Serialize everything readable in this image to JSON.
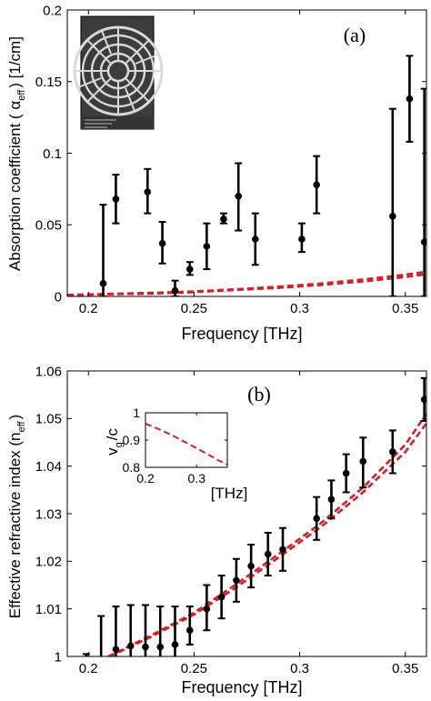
{
  "colors": {
    "data": "#000000",
    "model": "#d0202a",
    "frame": "#000000"
  },
  "chart_data": [
    {
      "type": "scatter",
      "panel_label": "(a)",
      "xlabel": "Frequency [THz]",
      "ylabel": "Absorption coefficient ( α",
      "ylabel_sub": "eff",
      "ylabel_tail": ") [1/cm]",
      "xlim": [
        0.19,
        0.36
      ],
      "ylim": [
        0,
        0.2
      ],
      "xticks": [
        0.2,
        0.25,
        0.3,
        0.35
      ],
      "xtick_labels": [
        "0.2",
        "0.25",
        "0.3",
        "0.35"
      ],
      "yticks": [
        0,
        0.05,
        0.1,
        0.15,
        0.2
      ],
      "ytick_labels": [
        "0",
        "0.05",
        "0.1",
        "0.15",
        "0.2"
      ],
      "grid": false,
      "inset_image": "SEM micrograph of circular concentric-ring fiber cross-section",
      "series": [
        {
          "style": "black dots with error bars",
          "points": [
            {
              "x": 0.207,
              "y": 0.009,
              "lo": 0.0,
              "hi": 0.064
            },
            {
              "x": 0.213,
              "y": 0.068,
              "lo": 0.051,
              "hi": 0.085
            },
            {
              "x": 0.228,
              "y": 0.073,
              "lo": 0.058,
              "hi": 0.089
            },
            {
              "x": 0.235,
              "y": 0.037,
              "lo": 0.023,
              "hi": 0.052
            },
            {
              "x": 0.241,
              "y": 0.004,
              "lo": 0.0,
              "hi": 0.011
            },
            {
              "x": 0.248,
              "y": 0.019,
              "lo": 0.015,
              "hi": 0.024
            },
            {
              "x": 0.256,
              "y": 0.035,
              "lo": 0.019,
              "hi": 0.051
            },
            {
              "x": 0.264,
              "y": 0.054,
              "lo": 0.051,
              "hi": 0.058
            },
            {
              "x": 0.271,
              "y": 0.07,
              "lo": 0.046,
              "hi": 0.093
            },
            {
              "x": 0.279,
              "y": 0.04,
              "lo": 0.022,
              "hi": 0.058
            },
            {
              "x": 0.301,
              "y": 0.04,
              "lo": 0.031,
              "hi": 0.051
            },
            {
              "x": 0.308,
              "y": 0.078,
              "lo": 0.058,
              "hi": 0.098
            },
            {
              "x": 0.344,
              "y": 0.056,
              "lo": 0.0,
              "hi": 0.131
            },
            {
              "x": 0.352,
              "y": 0.138,
              "lo": 0.108,
              "hi": 0.168
            },
            {
              "x": 0.359,
              "y": 0.038,
              "lo": 0.0,
              "hi": 0.145
            }
          ]
        },
        {
          "style": "red dashed",
          "x": [
            0.19,
            0.21,
            0.23,
            0.25,
            0.27,
            0.29,
            0.31,
            0.33,
            0.35,
            0.36
          ],
          "y": [
            0.001,
            0.0015,
            0.002,
            0.003,
            0.0045,
            0.006,
            0.008,
            0.0105,
            0.0135,
            0.0155
          ]
        },
        {
          "style": "red dashed",
          "x": [
            0.19,
            0.21,
            0.23,
            0.25,
            0.27,
            0.29,
            0.31,
            0.33,
            0.35,
            0.36
          ],
          "y": [
            0.001,
            0.0018,
            0.0025,
            0.0035,
            0.005,
            0.0068,
            0.009,
            0.0118,
            0.0152,
            0.0172
          ]
        }
      ]
    },
    {
      "type": "scatter",
      "panel_label": "(b)",
      "xlabel": "Frequency [THz]",
      "ylabel": "Effective refractive index (n",
      "ylabel_sub": "eff",
      "ylabel_tail": ")",
      "xlim": [
        0.19,
        0.36
      ],
      "ylim": [
        1,
        1.06
      ],
      "xticks": [
        0.2,
        0.25,
        0.3,
        0.35
      ],
      "xtick_labels": [
        "0.2",
        "0.25",
        "0.3",
        "0.35"
      ],
      "yticks": [
        1,
        1.01,
        1.02,
        1.03,
        1.04,
        1.05,
        1.06
      ],
      "ytick_labels": [
        "1",
        "1.01",
        "1.02",
        "1.03",
        "1.04",
        "1.05",
        "1.06"
      ],
      "grid": false,
      "series": [
        {
          "style": "black dots with error bars",
          "points": [
            {
              "x": 0.199,
              "y": 0.9995,
              "lo": 0.999,
              "hi": 1.0005
            },
            {
              "x": 0.206,
              "y": 0.9985,
              "lo": 0.9975,
              "hi": 1.0085
            },
            {
              "x": 0.213,
              "y": 1.0015,
              "lo": 0.9985,
              "hi": 1.0105
            },
            {
              "x": 0.22,
              "y": 1.0022,
              "lo": 0.9985,
              "hi": 1.0108
            },
            {
              "x": 0.227,
              "y": 1.002,
              "lo": 0.9985,
              "hi": 1.0108
            },
            {
              "x": 0.234,
              "y": 1.002,
              "lo": 0.9985,
              "hi": 1.0105
            },
            {
              "x": 0.241,
              "y": 1.0025,
              "lo": 0.999,
              "hi": 1.0105
            },
            {
              "x": 0.248,
              "y": 1.0055,
              "lo": 1.0025,
              "hi": 1.0105
            },
            {
              "x": 0.256,
              "y": 1.01,
              "lo": 1.0055,
              "hi": 1.015
            },
            {
              "x": 0.263,
              "y": 1.0125,
              "lo": 1.008,
              "hi": 1.017
            },
            {
              "x": 0.27,
              "y": 1.016,
              "lo": 1.0115,
              "hi": 1.0205
            },
            {
              "x": 0.277,
              "y": 1.019,
              "lo": 1.0145,
              "hi": 1.0235
            },
            {
              "x": 0.285,
              "y": 1.0215,
              "lo": 1.017,
              "hi": 1.026
            },
            {
              "x": 0.292,
              "y": 1.0225,
              "lo": 1.018,
              "hi": 1.027
            },
            {
              "x": 0.308,
              "y": 1.029,
              "lo": 1.0245,
              "hi": 1.0335
            },
            {
              "x": 0.315,
              "y": 1.033,
              "lo": 1.029,
              "hi": 1.037
            },
            {
              "x": 0.322,
              "y": 1.0385,
              "lo": 1.0345,
              "hi": 1.0425
            },
            {
              "x": 0.33,
              "y": 1.041,
              "lo": 1.0355,
              "hi": 1.046
            },
            {
              "x": 0.344,
              "y": 1.043,
              "lo": 1.0385,
              "hi": 1.0475
            },
            {
              "x": 0.359,
              "y": 1.054,
              "lo": 1.0495,
              "hi": 1.0585
            }
          ]
        },
        {
          "style": "red dashed",
          "x": [
            0.205,
            0.23,
            0.25,
            0.27,
            0.29,
            0.31,
            0.33,
            0.35,
            0.36
          ],
          "y": [
            0.999,
            1.0045,
            1.0092,
            1.0152,
            1.0215,
            1.028,
            1.0355,
            1.0445,
            1.051
          ]
        },
        {
          "style": "red dashed",
          "x": [
            0.21,
            0.23,
            0.25,
            0.27,
            0.29,
            0.31,
            0.33,
            0.35,
            0.36
          ],
          "y": [
            1.0,
            1.0042,
            1.0088,
            1.0145,
            1.0208,
            1.0272,
            1.0345,
            1.043,
            1.049
          ]
        }
      ]
    },
    {
      "type": "line",
      "panel_label": "",
      "xlabel": "[THz]",
      "ylabel": "v",
      "ylabel_sub": "g",
      "ylabel_tail": "/c",
      "xlim": [
        0.2,
        0.36
      ],
      "ylim": [
        0.8,
        1.0
      ],
      "xticks": [
        0.2,
        0.3
      ],
      "xtick_labels": [
        "0.2",
        "0.3"
      ],
      "yticks": [
        0.8,
        0.9,
        1.0
      ],
      "ytick_labels": [
        "0.8",
        "0.9",
        "1"
      ],
      "grid": false,
      "series": [
        {
          "style": "red dashed",
          "x": [
            0.2,
            0.22,
            0.24,
            0.26,
            0.28,
            0.3,
            0.32,
            0.34,
            0.36
          ],
          "y": [
            0.96,
            0.945,
            0.928,
            0.91,
            0.89,
            0.87,
            0.85,
            0.828,
            0.81
          ]
        }
      ]
    }
  ]
}
